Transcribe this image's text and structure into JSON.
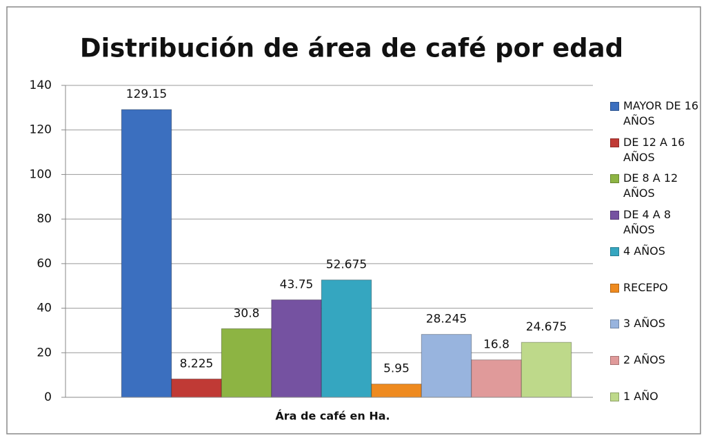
{
  "chart_data": {
    "type": "bar",
    "title": "Distribución de área de café por edad",
    "categories": [
      "Ára  de café en Ha."
    ],
    "series": [
      {
        "name": "MAYOR DE 16 AÑOS",
        "color": "#3b6fbf",
        "values": [
          129.15
        ]
      },
      {
        "name": "DE 12 A 16 AÑOS",
        "color": "#c03a35",
        "values": [
          8.225
        ]
      },
      {
        "name": "DE 8 A 12 AÑOS",
        "color": "#8db443",
        "values": [
          30.8
        ]
      },
      {
        "name": "DE 4 A 8 AÑOS",
        "color": "#7552a1",
        "values": [
          43.75
        ]
      },
      {
        "name": "4 AÑOS",
        "color": "#35a6c0",
        "values": [
          52.675
        ]
      },
      {
        "name": "RECEPO",
        "color": "#ee8a1f",
        "values": [
          5.95
        ]
      },
      {
        "name": "3 AÑOS",
        "color": "#98b4de",
        "values": [
          28.245
        ]
      },
      {
        "name": "2 AÑOS",
        "color": "#e09a9a",
        "values": [
          16.8
        ]
      },
      {
        "name": "1 AÑO",
        "color": "#bed98a",
        "values": [
          24.675
        ]
      }
    ],
    "ylim": [
      0,
      140
    ],
    "yticks": [
      0,
      20,
      40,
      60,
      80,
      100,
      120,
      140
    ],
    "grid": true,
    "legend": "right"
  }
}
